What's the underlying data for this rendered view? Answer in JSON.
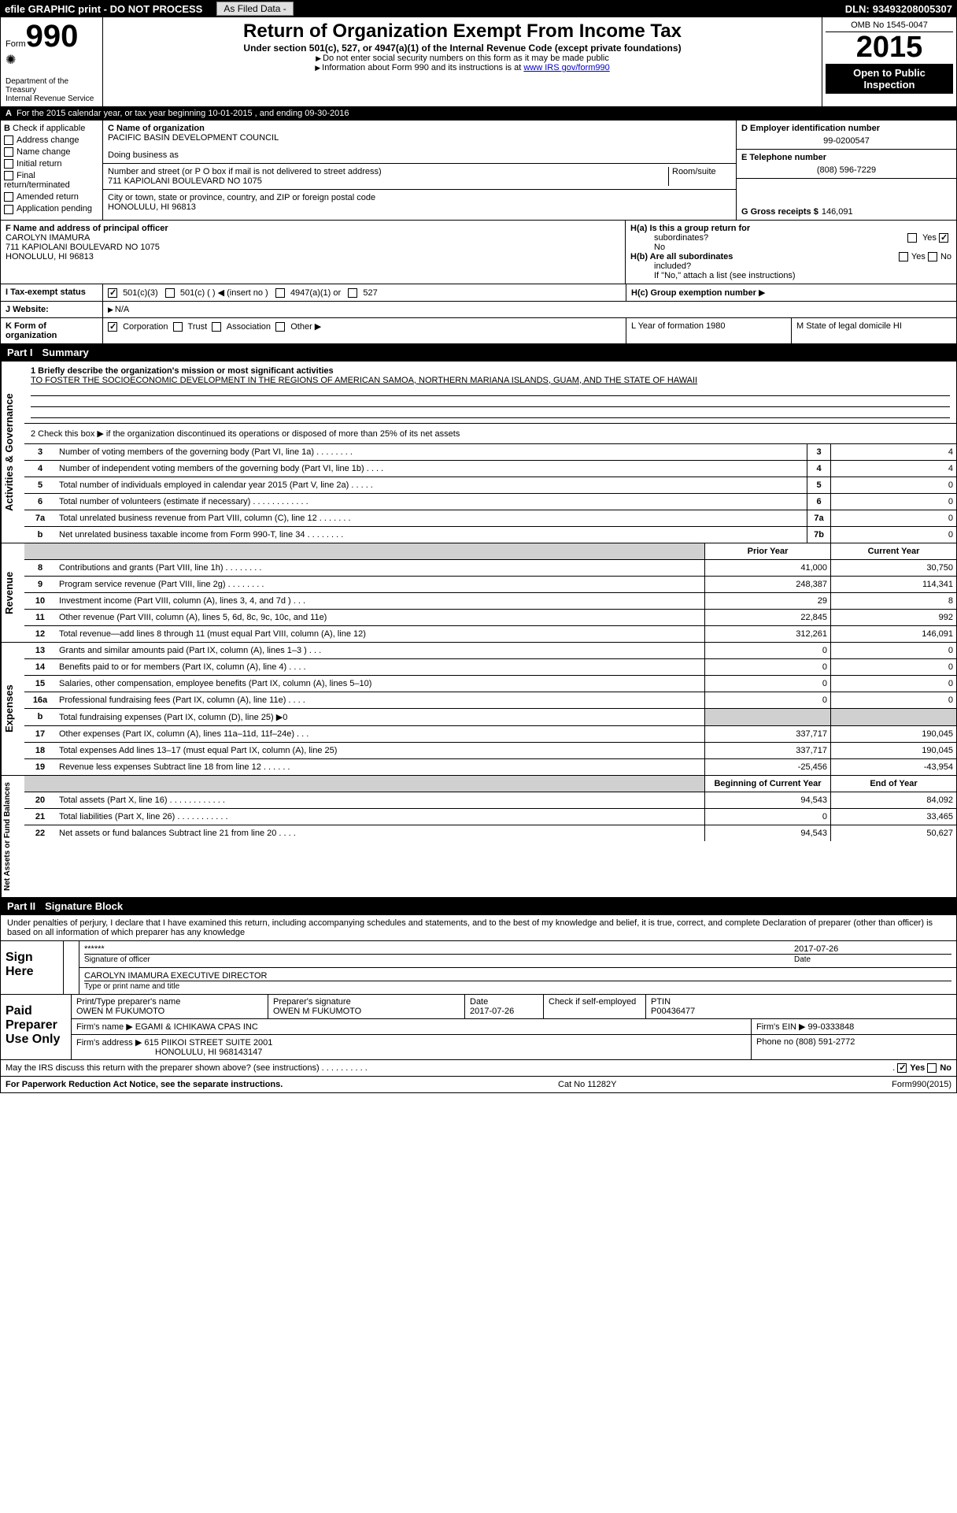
{
  "topbar": {
    "efile": "efile GRAPHIC print - DO NOT PROCESS",
    "asfiled": "As Filed Data -",
    "dln_label": "DLN:",
    "dln": "93493208005307"
  },
  "header": {
    "form_label": "Form",
    "form_number": "990",
    "dept1": "Department of the",
    "dept2": "Treasury",
    "dept3": "Internal Revenue Service",
    "title": "Return of Organization Exempt From Income Tax",
    "subtitle": "Under section 501(c), 527, or 4947(a)(1) of the Internal Revenue Code (except private foundations)",
    "warn1": "Do not enter social security numbers on this form as it may be made public",
    "warn2_pre": "Information about Form 990 and its instructions is at ",
    "warn2_link": "www IRS gov/form990",
    "omb": "OMB No 1545-0047",
    "year": "2015",
    "inspection": "Open to Public Inspection"
  },
  "lineA": "For the 2015 calendar year, or tax year beginning 10-01-2015    , and ending 09-30-2016",
  "sectionB": {
    "header": "Check if applicable",
    "items": [
      "Address change",
      "Name change",
      "Initial return",
      "Final return/terminated",
      "Amended return",
      "Application pending"
    ]
  },
  "orgC": {
    "label": "C Name of organization",
    "name": "PACIFIC BASIN DEVELOPMENT COUNCIL",
    "dba_label": "Doing business as",
    "dba": "",
    "addr_label": "Number and street (or P O  box if mail is not delivered to street address)",
    "room_label": "Room/suite",
    "addr": "711 KAPIOLANI BOULEVARD NO 1075",
    "city_label": "City or town, state or province, country, and ZIP or foreign postal code",
    "city": "HONOLULU, HI  96813"
  },
  "side": {
    "d_label": "D Employer identification number",
    "d_value": "99-0200547",
    "e_label": "E Telephone number",
    "e_value": "(808) 596-7229",
    "g_label": "G Gross receipts $",
    "g_value": "146,091"
  },
  "officer": {
    "f_label": "F  Name and address of principal officer",
    "name": "CAROLYN IMAMURA",
    "addr1": "711 KAPIOLANI BOULEVARD NO 1075",
    "addr2": "HONOLULU, HI  96813",
    "ha_label": "H(a)  Is this a group return for",
    "ha_sub": "subordinates?",
    "no": "No",
    "yes": "Yes",
    "hb_label": "H(b)  Are all subordinates",
    "hb_sub": "included?",
    "hb_note": "If \"No,\" attach a list  (see instructions)",
    "hc_label": "H(c)   Group exemption number"
  },
  "tax": {
    "i_label": "I     Tax-exempt status",
    "opt1": "501(c)(3)",
    "opt2": "501(c) (  )",
    "opt2b": "(insert no )",
    "opt3": "4947(a)(1) or",
    "opt4": "527"
  },
  "website": {
    "label": "J   Website:",
    "value": "N/A"
  },
  "formorg": {
    "k_label": "K  Form of organization",
    "corp": "Corporation",
    "trust": "Trust",
    "assoc": "Association",
    "other": "Other",
    "l_label": "L  Year of formation  1980",
    "m_label": "M  State of legal domicile  HI"
  },
  "part1": {
    "label": "Part I",
    "title": "Summary"
  },
  "activities": {
    "q1_label": "1 Briefly describe the organization's mission or most significant activities",
    "q1_text": "TO FOSTER THE SOCIOECONOMIC DEVELOPMENT IN THE REGIONS OF AMERICAN SAMOA, NORTHERN MARIANA ISLANDS, GUAM, AND THE STATE OF HAWAII",
    "q2": "2  Check this box ▶     if the organization discontinued its operations or disposed of more than 25% of its net assets",
    "lines": [
      {
        "n": "3",
        "d": "Number of voting members of the governing body (Part VI, line 1a)  .   .   .   .   .   .   .   .",
        "ln": "3",
        "v": "4"
      },
      {
        "n": "4",
        "d": "Number of independent voting members of the governing body (Part VI, line 1b)   .   .   .   .",
        "ln": "4",
        "v": "4"
      },
      {
        "n": "5",
        "d": "Total number of individuals employed in calendar year 2015 (Part V, line 2a)  .   .   .   .   .",
        "ln": "5",
        "v": "0"
      },
      {
        "n": "6",
        "d": "Total number of volunteers (estimate if necessary)   .   .   .   .   .   .   .   .   .   .   .   .",
        "ln": "6",
        "v": "0"
      },
      {
        "n": "7a",
        "d": "Total unrelated business revenue from Part VIII, column (C), line 12   .   .   .   .   .   .   .",
        "ln": "7a",
        "v": "0"
      },
      {
        "n": "b",
        "d": "Net unrelated business taxable income from Form 990-T, line 34   .   .   .   .   .   .   .   .",
        "ln": "7b",
        "v": "0"
      }
    ]
  },
  "revenue": {
    "header_prior": "Prior Year",
    "header_curr": "Current Year",
    "lines": [
      {
        "n": "8",
        "d": "Contributions and grants (Part VIII, line 1h)   .   .   .   .   .   .   .   .",
        "p": "41,000",
        "c": "30,750"
      },
      {
        "n": "9",
        "d": "Program service revenue (Part VIII, line 2g)   .   .   .   .   .   .   .   .",
        "p": "248,387",
        "c": "114,341"
      },
      {
        "n": "10",
        "d": "Investment income (Part VIII, column (A), lines 3, 4, and 7d )   .   .   .",
        "p": "29",
        "c": "8"
      },
      {
        "n": "11",
        "d": "Other revenue (Part VIII, column (A), lines 5, 6d, 8c, 9c, 10c, and 11e)",
        "p": "22,845",
        "c": "992"
      },
      {
        "n": "12",
        "d": "Total revenue—add lines 8 through 11 (must equal Part VIII, column (A), line 12)",
        "p": "312,261",
        "c": "146,091"
      }
    ]
  },
  "expenses": {
    "lines": [
      {
        "n": "13",
        "d": "Grants and similar amounts paid (Part IX, column (A), lines 1–3 )   .   .   .",
        "p": "0",
        "c": "0"
      },
      {
        "n": "14",
        "d": "Benefits paid to or for members (Part IX, column (A), line 4)   .   .   .   .",
        "p": "0",
        "c": "0"
      },
      {
        "n": "15",
        "d": "Salaries, other compensation, employee benefits (Part IX, column (A), lines 5–10)",
        "p": "0",
        "c": "0"
      },
      {
        "n": "16a",
        "d": "Professional fundraising fees (Part IX, column (A), line 11e)   .   .   .   .",
        "p": "0",
        "c": "0"
      },
      {
        "n": "b",
        "d": "Total fundraising expenses (Part IX, column (D), line 25) ▶0",
        "p": "",
        "c": "",
        "shaded": true
      },
      {
        "n": "17",
        "d": "Other expenses (Part IX, column (A), lines 11a–11d, 11f–24e)   .   .   .",
        "p": "337,717",
        "c": "190,045"
      },
      {
        "n": "18",
        "d": "Total expenses  Add lines 13–17 (must equal Part IX, column (A), line 25)",
        "p": "337,717",
        "c": "190,045"
      },
      {
        "n": "19",
        "d": "Revenue less expenses  Subtract line 18 from line 12   .   .   .   .   .   .",
        "p": "-25,456",
        "c": "-43,954"
      }
    ]
  },
  "netassets": {
    "header_begin": "Beginning of Current Year",
    "header_end": "End of Year",
    "lines": [
      {
        "n": "20",
        "d": "Total assets (Part X, line 16)   .   .   .   .   .   .   .   .   .   .   .   .",
        "p": "94,543",
        "c": "84,092"
      },
      {
        "n": "21",
        "d": "Total liabilities (Part X, line 26)   .   .   .   .   .   .   .   .   .   .   .",
        "p": "0",
        "c": "33,465"
      },
      {
        "n": "22",
        "d": "Net assets or fund balances  Subtract line 21 from line 20   .   .   .   .",
        "p": "94,543",
        "c": "50,627"
      }
    ]
  },
  "part2": {
    "label": "Part II",
    "title": "Signature Block"
  },
  "perjury": "Under penalties of perjury, I declare that I have examined this return, including accompanying schedules and statements, and to the best of my knowledge and belief, it is true, correct, and complete  Declaration of preparer (other than officer) is based on all information of which preparer has any knowledge",
  "sign": {
    "here_label": "Sign Here",
    "sig_stars": "******",
    "sig_label": "Signature of officer",
    "date": "2017-07-26",
    "date_label": "Date",
    "name": "CAROLYN IMAMURA EXECUTIVE DIRECTOR",
    "name_label": "Type or print name and title"
  },
  "preparer": {
    "label": "Paid Preparer Use Only",
    "col1_label": "Print/Type preparer's name",
    "col1_val": "OWEN M FUKUMOTO",
    "col2_label": "Preparer's signature",
    "col2_val": "OWEN M FUKUMOTO",
    "col3_label": "Date",
    "col3_val": "2017-07-26",
    "col4_label": "Check       if self-employed",
    "col5_label": "PTIN",
    "col5_val": "P00436477",
    "firm_label": "Firm's name     ▶ EGAMI & ICHIKAWA CPAS INC",
    "ein_label": "Firm's EIN ▶ 99-0333848",
    "addr_label": "Firm's address ▶ 615 PIIKOI STREET SUITE 2001",
    "addr2": "HONOLULU, HI  968143147",
    "phone_label": "Phone no  (808) 591-2772"
  },
  "discuss": "May the IRS discuss this return with the preparer shown above? (see instructions)   .   .   .   .   .   .   .   .   .   .",
  "discuss_yes": "Yes",
  "discuss_no": "No",
  "footer": {
    "left": "For Paperwork Reduction Act Notice, see the separate instructions.",
    "mid": "Cat  No  11282Y",
    "right": "Form990(2015)"
  },
  "sidelabels": {
    "activities": "Activities & Governance",
    "revenue": "Revenue",
    "expenses": "Expenses",
    "netassets": "Net Assets or Fund Balances"
  }
}
